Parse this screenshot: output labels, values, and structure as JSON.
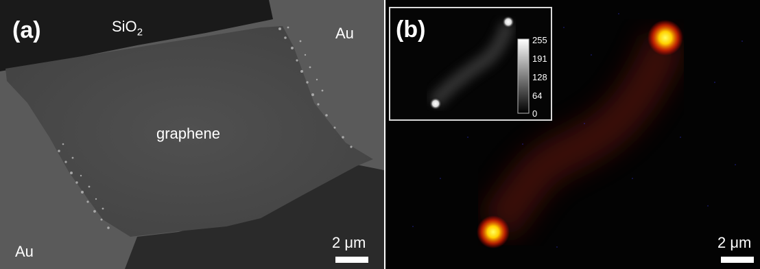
{
  "panel_a": {
    "label": "(a)",
    "sio2": {
      "main": "SiO",
      "sub": "2"
    },
    "au_top": "Au",
    "graphene": "graphene",
    "au_bottom": "Au",
    "scale": {
      "number": "2 ",
      "unit": "μm"
    }
  },
  "panel_b": {
    "label": "(b)",
    "scale": {
      "number": "2 ",
      "unit": "μm"
    },
    "inset": {
      "colorbar_ticks": [
        "255",
        "191",
        "128",
        "64",
        "0"
      ]
    }
  },
  "colors": {
    "spot_core": "#ffff40",
    "spot_glow": "#ff3000",
    "channel_glow": "#6a1208"
  }
}
